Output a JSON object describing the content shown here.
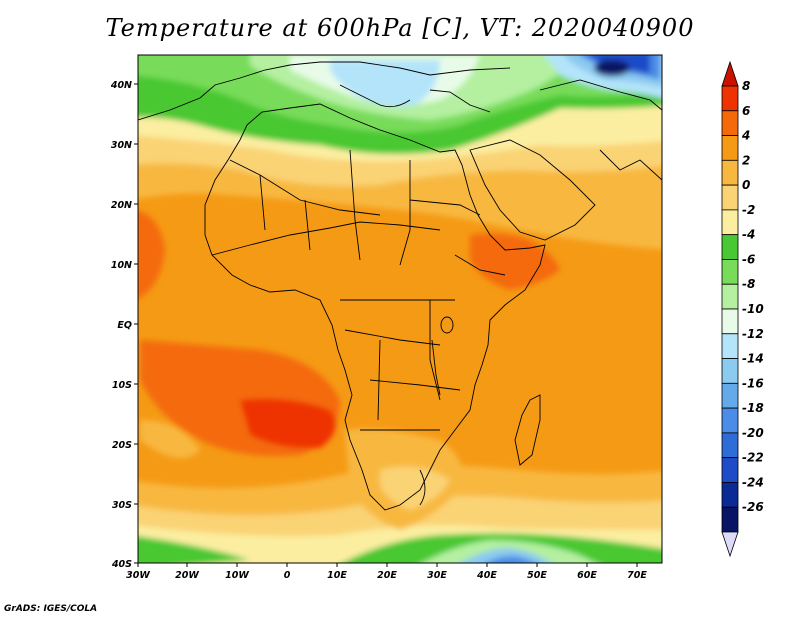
{
  "title": "Temperature at 600hPa [C], VT: 2020040900",
  "footer": "GrADS: IGES/COLA",
  "lat_labels": [
    "40N",
    "30N",
    "20N",
    "10N",
    "EQ",
    "10S",
    "20S",
    "30S",
    "40S"
  ],
  "lon_labels": [
    "30W",
    "20W",
    "10W",
    "0",
    "10E",
    "20E",
    "30E",
    "40E",
    "50E",
    "60E",
    "70E"
  ],
  "colorbar": {
    "labels": [
      "8",
      "6",
      "4",
      "2",
      "0",
      "-2",
      "-4",
      "-6",
      "-8",
      "-10",
      "-12",
      "-14",
      "-16",
      "-18",
      "-20",
      "-22",
      "-24",
      "-26"
    ],
    "colors": [
      "#cc1100",
      "#ee3300",
      "#f46a0a",
      "#f59a15",
      "#f8b840",
      "#fad374",
      "#fbeea0",
      "#48c832",
      "#78dc5a",
      "#b4f0a0",
      "#e8fbe8",
      "#b4e4fa",
      "#8ccaf0",
      "#64aaea",
      "#4a8ce6",
      "#2e6cd8",
      "#1e4cc8",
      "#0a2a96",
      "#081464",
      "#dcdcfa"
    ]
  }
}
